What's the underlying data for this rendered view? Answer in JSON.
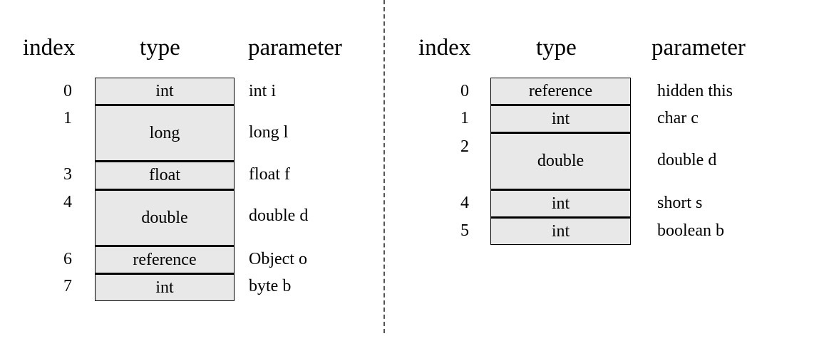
{
  "headers": {
    "index": "index",
    "type": "type",
    "parameter": "parameter"
  },
  "left": {
    "rows": [
      {
        "index": "0",
        "type": "int",
        "parameter": "int i"
      },
      {
        "index": "1",
        "type": "long",
        "parameter": "long l"
      },
      {
        "index": "3",
        "type": "float",
        "parameter": "float f"
      },
      {
        "index": "4",
        "type": "double",
        "parameter": "double d"
      },
      {
        "index": "6",
        "type": "reference",
        "parameter": "Object o"
      },
      {
        "index": "7",
        "type": "int",
        "parameter": "byte b"
      }
    ]
  },
  "right": {
    "rows": [
      {
        "index": "0",
        "type": "reference",
        "parameter": "hidden this"
      },
      {
        "index": "1",
        "type": "int",
        "parameter": "char c"
      },
      {
        "index": "2",
        "type": "double",
        "parameter": "double d"
      },
      {
        "index": "4",
        "type": "int",
        "parameter": "short s"
      },
      {
        "index": "5",
        "type": "int",
        "parameter": "boolean b"
      }
    ]
  }
}
